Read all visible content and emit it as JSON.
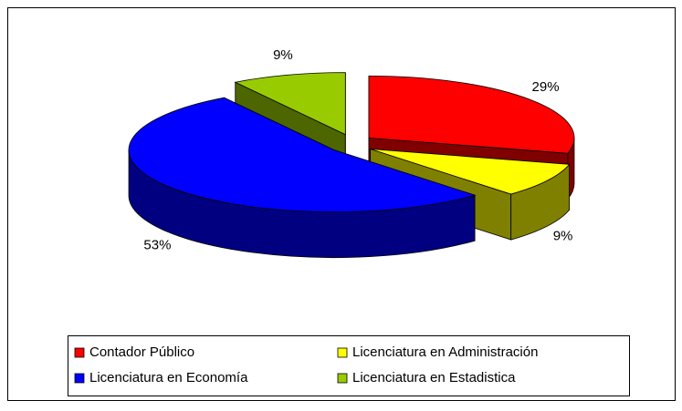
{
  "chart_data": {
    "type": "pie3d",
    "categories": [
      "Contador Público",
      "Licenciatura en Administración",
      "Licenciatura en Economía",
      "Licenciatura en Estadistica"
    ],
    "values": [
      29,
      9,
      53,
      9
    ],
    "value_labels": [
      "29%",
      "9%",
      "53%",
      "9%"
    ],
    "colors": [
      "#ff0000",
      "#ffff00",
      "#0000ff",
      "#99cc00"
    ],
    "legend": "bottom"
  }
}
